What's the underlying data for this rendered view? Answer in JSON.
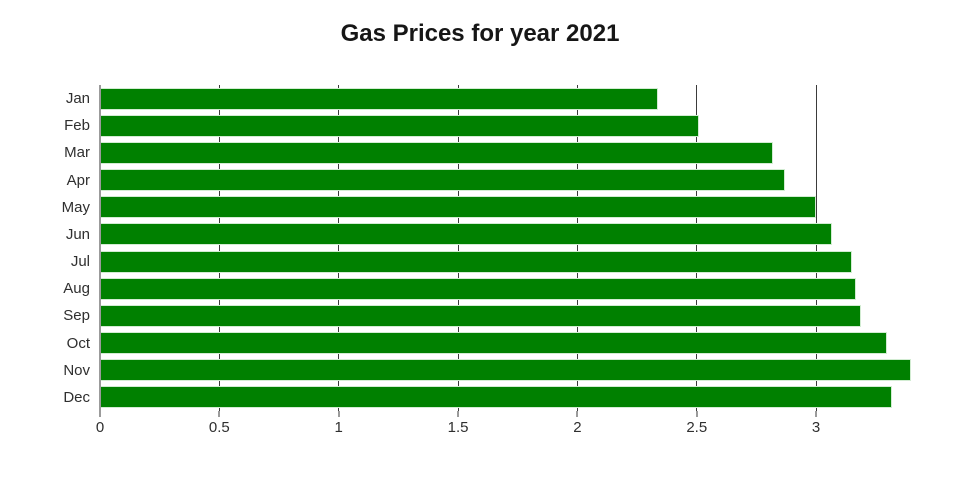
{
  "chart_data": {
    "type": "bar",
    "orientation": "horizontal",
    "title": "Gas Prices for year 2021",
    "xlabel": "",
    "ylabel": "",
    "categories": [
      "Jan",
      "Feb",
      "Mar",
      "Apr",
      "May",
      "Jun",
      "Jul",
      "Aug",
      "Sep",
      "Oct",
      "Nov",
      "Dec"
    ],
    "values": [
      2.33,
      2.5,
      2.81,
      2.86,
      2.99,
      3.06,
      3.14,
      3.16,
      3.18,
      3.29,
      3.39,
      3.31
    ],
    "xlim": [
      0,
      3.54
    ],
    "x_ticks": [
      0,
      0.5,
      1,
      1.5,
      2,
      2.5,
      3
    ],
    "x_tick_labels": [
      "0",
      "0.5",
      "1",
      "1.5",
      "2",
      "2.5",
      "3"
    ],
    "grid": true,
    "legend": false,
    "bar_color": "#008000",
    "bar_edge_color": "#d2ecd2",
    "gridline_color": "#3b3b3b",
    "axis_color": "#9b9b9b",
    "label_color": "#2f2f2f",
    "title_color": "#161616"
  }
}
